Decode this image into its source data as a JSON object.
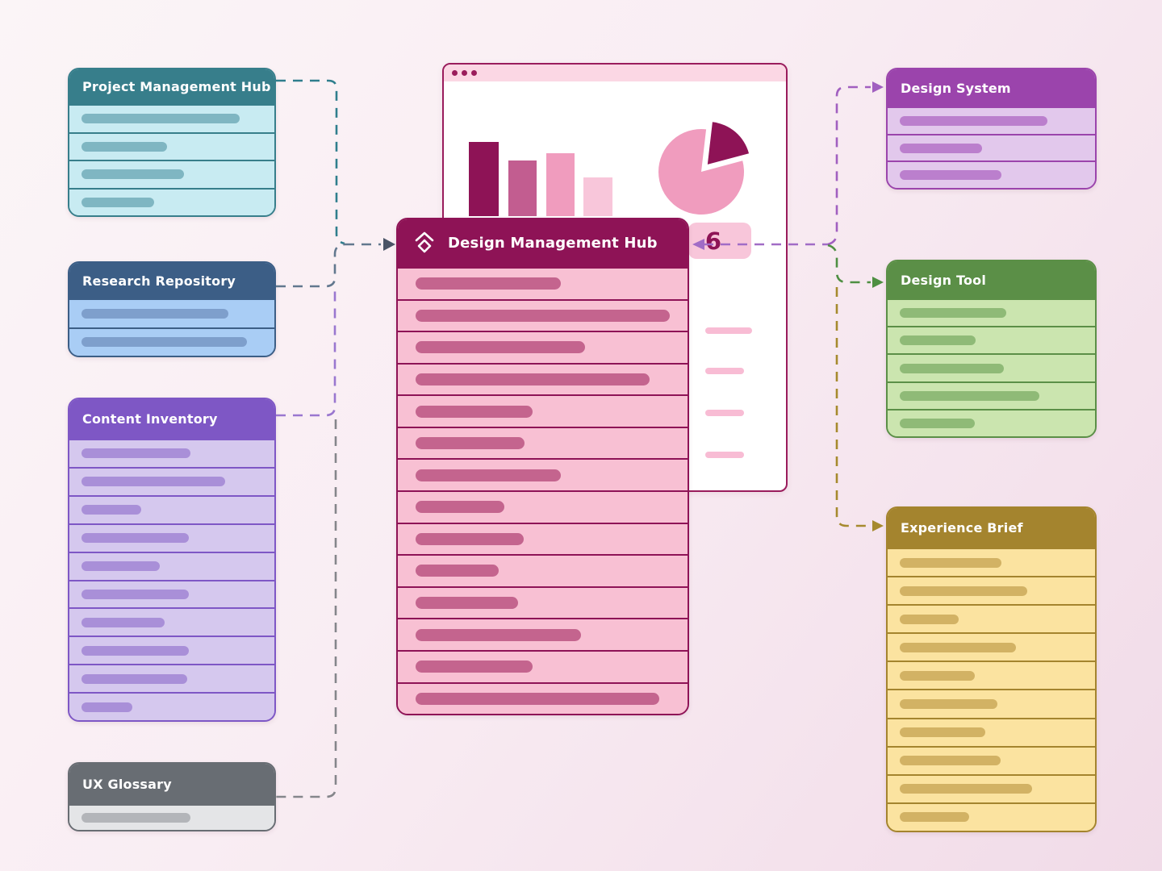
{
  "canvas": {
    "background_top_left": "#FBF5F7",
    "background_bottom_right": "#F1DBE8"
  },
  "entities": {
    "design_management_hub": {
      "title": "Design Management Hub",
      "icon": "diamond-logo-icon",
      "colors": {
        "header": "#8E1356",
        "row": "#F8C0D3",
        "bar": "#C4648E"
      },
      "rows": [
        180,
        315,
        210,
        290,
        145,
        135,
        180,
        110,
        134,
        103,
        127,
        205,
        145,
        302
      ]
    },
    "project_management_hub": {
      "title": "Project Management Hub",
      "colors": {
        "header": "#377E8B",
        "row": "#C8EBF2",
        "bar": "#7FB6C2"
      },
      "rows": [
        196,
        106,
        127,
        90
      ]
    },
    "research_repository": {
      "title": "Research Repository",
      "colors": {
        "header": "#3C5E86",
        "row": "#A9CDF5",
        "bar": "#7E9FCC"
      },
      "rows": [
        182,
        205
      ]
    },
    "content_inventory": {
      "title": "Content Inventory",
      "colors": {
        "header": "#7E57C5",
        "row": "#D5C8EE",
        "bar": "#A98FD8"
      },
      "rows": [
        135,
        178,
        74,
        133,
        97,
        133,
        103,
        133,
        131,
        63
      ]
    },
    "ux_glossary": {
      "title": "UX Glossary",
      "colors": {
        "header": "#686D73",
        "row": "#E4E5E7",
        "bar": "#B3B5B9"
      },
      "rows": [
        135
      ]
    },
    "design_system": {
      "title": "Design System",
      "colors": {
        "header": "#9B44AC",
        "row": "#E2C8EC",
        "bar": "#BB7FCD"
      },
      "rows": [
        183,
        102,
        126
      ]
    },
    "design_tool": {
      "title": "Design Tool",
      "colors": {
        "header": "#5B8F47",
        "row": "#CBE5AF",
        "bar": "#8FBA77"
      },
      "rows": [
        132,
        94,
        129,
        173,
        93
      ]
    },
    "experience_brief": {
      "title": "Experience Brief",
      "colors": {
        "header": "#A4842E",
        "row": "#FBE3A0",
        "bar": "#D2B264"
      },
      "rows": [
        126,
        158,
        73,
        144,
        93,
        121,
        106,
        125,
        164,
        86
      ]
    }
  },
  "badge": {
    "value": "6",
    "bg": "#F8C6DA",
    "text_color": "#8E1356"
  },
  "browser_window": {
    "border_color": "#9A1C5C",
    "titlebar_color": "#FBD7E4",
    "dot_color": "#9A1C5C",
    "list_line_color": "#F8BCD4",
    "list_lines": [
      58,
      48,
      48,
      48
    ],
    "chart_data": [
      {
        "type": "bar",
        "values": [
          92,
          69,
          78,
          48
        ],
        "colors": [
          "#8E1356",
          "#C25D90",
          "#F09CBE",
          "#F8C6DA"
        ]
      },
      {
        "type": "pie",
        "slices": [
          {
            "value": 81,
            "color": "#F09CBE",
            "exploded": false
          },
          {
            "value": 19,
            "color": "#8E1356",
            "exploded": true
          }
        ]
      }
    ]
  },
  "connections": [
    {
      "id": "pmh-to-hub",
      "color": "#2F7E8D"
    },
    {
      "id": "rr-to-hub",
      "color": "#62788E"
    },
    {
      "id": "hub-entry-arrow",
      "color": "#4A5466"
    },
    {
      "id": "ci-to-trunk",
      "color": "#9A77CF"
    },
    {
      "id": "uxg-to-trunk",
      "color": "#85868B"
    },
    {
      "id": "hub-to-badge",
      "color": "#A16CC6"
    },
    {
      "id": "to-design-system",
      "color": "#A15FC0"
    },
    {
      "id": "to-design-tool",
      "color": "#4E8F42"
    },
    {
      "id": "to-experience-brief",
      "color": "#A68A2E"
    }
  ]
}
